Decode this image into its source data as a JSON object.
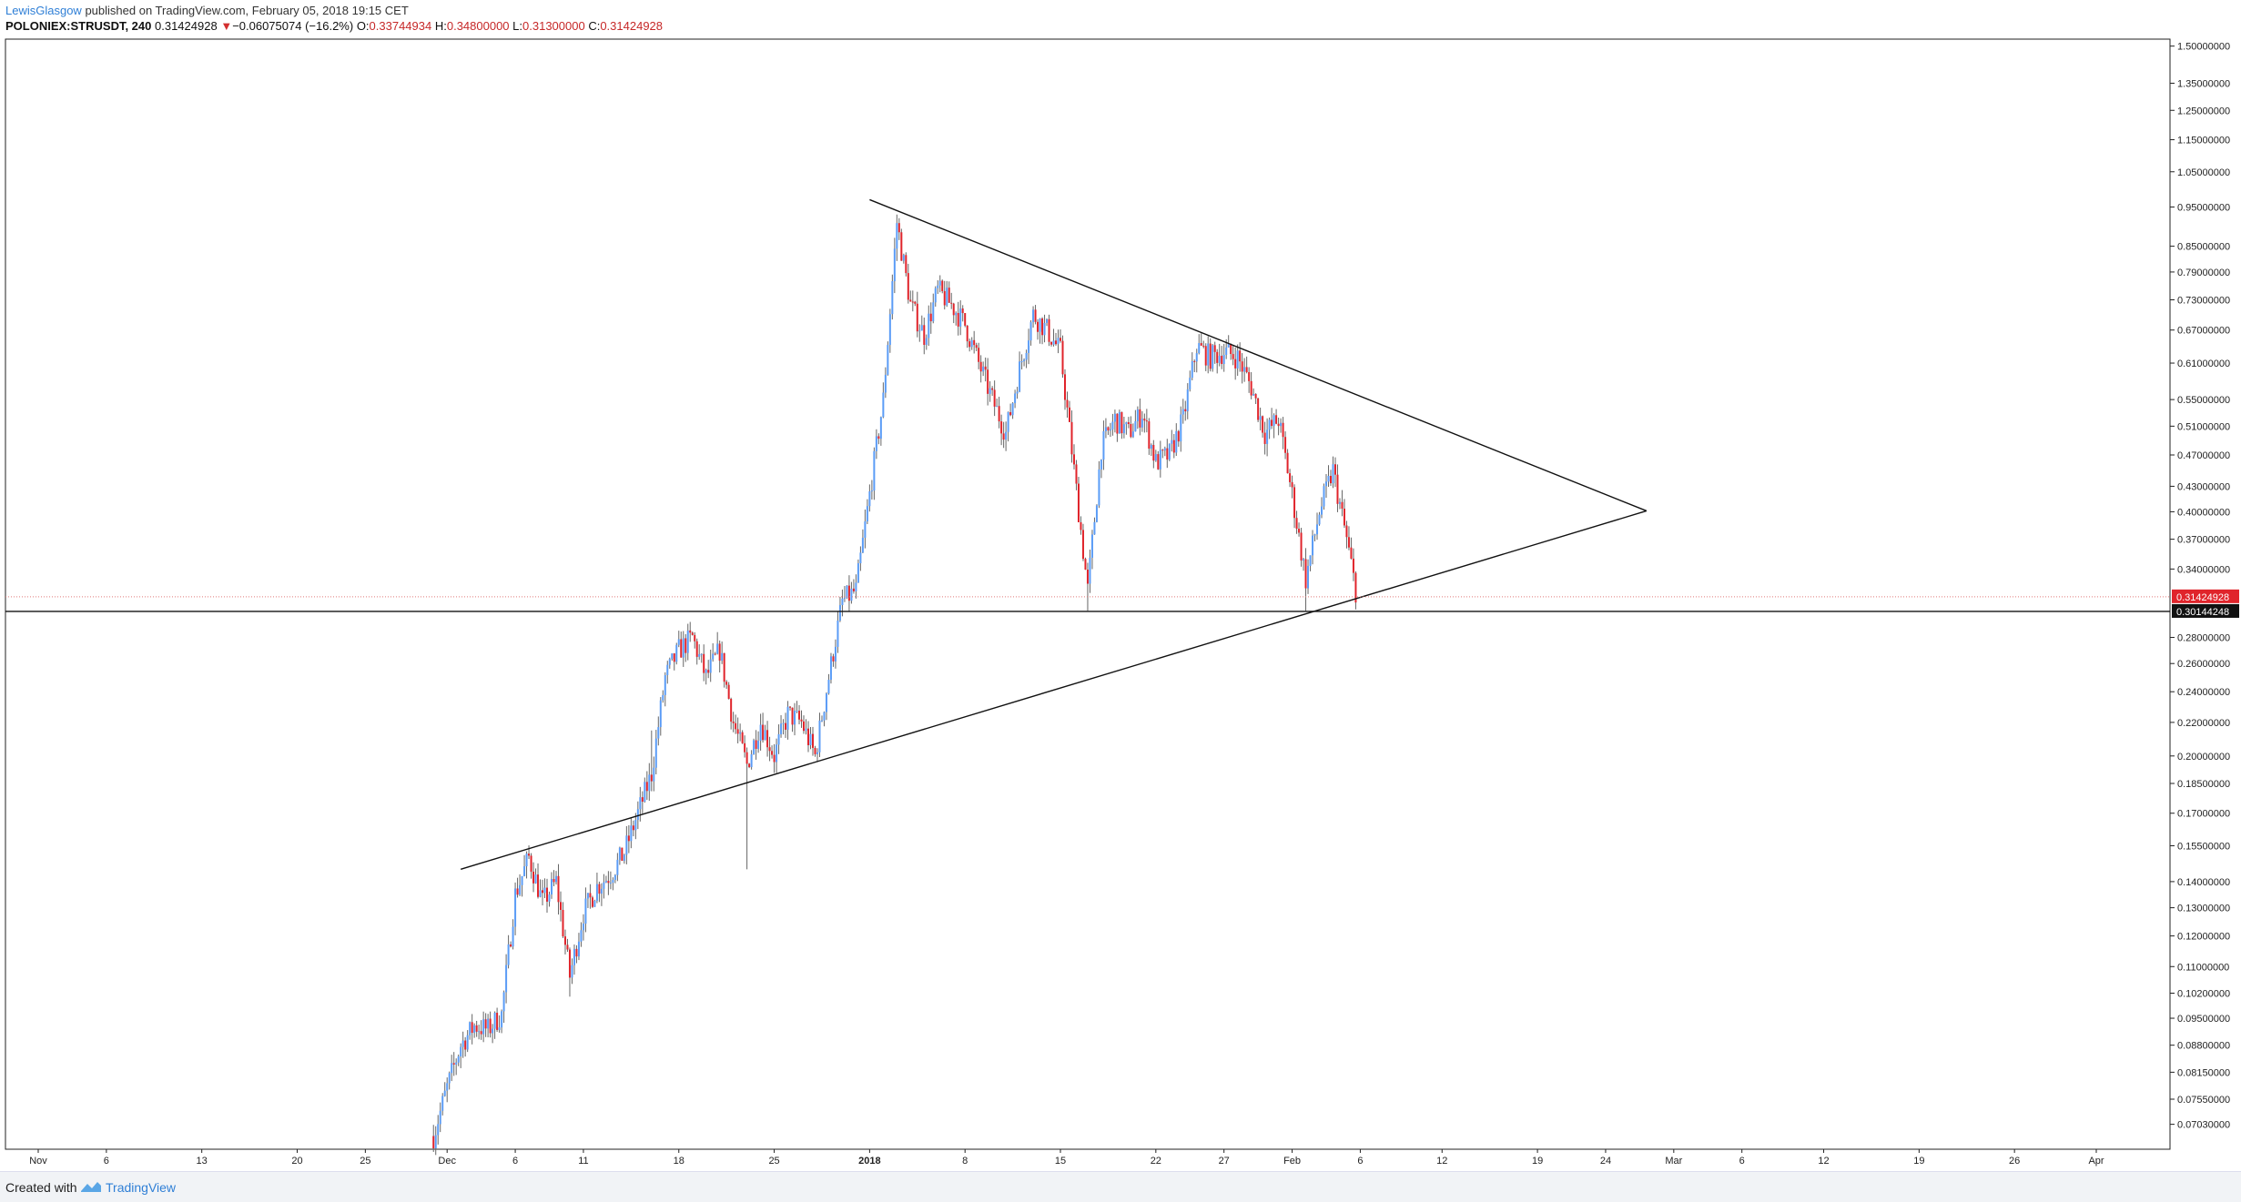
{
  "header": {
    "author": "LewisGlasgow",
    "published_text": "published on TradingView.com, February 05, 2018 19:15 CET",
    "symbol": "POLONIEX:STRUSDT, 240",
    "last": "0.31424928",
    "change_arrow": "▼",
    "change": "−0.06075074 (−16.2%)",
    "open_label": "O:",
    "open": "0.33744934",
    "high_label": "H:",
    "high": "0.34800000",
    "low_label": "L:",
    "low": "0.31300000",
    "close_label": "C:",
    "close": "0.31424928"
  },
  "footer": {
    "created_with": "Created with",
    "brand": "TradingView"
  },
  "colors": {
    "up": "#5b9cf6",
    "down": "#e0242b",
    "wick": "#666666",
    "current_price_bg": "#e0242b",
    "support_label_bg": "#111111"
  },
  "chart_data": {
    "type": "candlestick",
    "scale": "log",
    "ylim": [
      0.0655,
      1.53
    ],
    "y_ticks": [
      "1.50000000",
      "1.35000000",
      "1.25000000",
      "1.15000000",
      "1.05000000",
      "0.95000000",
      "0.85000000",
      "0.79000000",
      "0.73000000",
      "0.67000000",
      "0.61000000",
      "0.55000000",
      "0.51000000",
      "0.47000000",
      "0.43000000",
      "0.40000000",
      "0.37000000",
      "0.34000000",
      "0.28000000",
      "0.26000000",
      "0.24000000",
      "0.22000000",
      "0.20000000",
      "0.18500000",
      "0.17000000",
      "0.15500000",
      "0.14000000",
      "0.13000000",
      "0.12000000",
      "0.11000000",
      "0.10200000",
      "0.09500000",
      "0.08800000",
      "0.08150000",
      "0.07550000",
      "0.07030000"
    ],
    "x_ticks": [
      {
        "label": "Nov",
        "date": "2017-11-01"
      },
      {
        "label": "6",
        "date": "2017-11-06"
      },
      {
        "label": "13",
        "date": "2017-11-13"
      },
      {
        "label": "20",
        "date": "2017-11-20"
      },
      {
        "label": "25",
        "date": "2017-11-25"
      },
      {
        "label": "Dec",
        "date": "2017-12-01"
      },
      {
        "label": "6",
        "date": "2017-12-06"
      },
      {
        "label": "11",
        "date": "2017-12-11"
      },
      {
        "label": "18",
        "date": "2017-12-18"
      },
      {
        "label": "25",
        "date": "2017-12-25"
      },
      {
        "label": "2018",
        "date": "2018-01-01",
        "bold": true
      },
      {
        "label": "8",
        "date": "2018-01-08"
      },
      {
        "label": "15",
        "date": "2018-01-15"
      },
      {
        "label": "22",
        "date": "2018-01-22"
      },
      {
        "label": "27",
        "date": "2018-01-27"
      },
      {
        "label": "Feb",
        "date": "2018-02-01"
      },
      {
        "label": "6",
        "date": "2018-02-06"
      },
      {
        "label": "12",
        "date": "2018-02-12"
      },
      {
        "label": "19",
        "date": "2018-02-19"
      },
      {
        "label": "24",
        "date": "2018-02-24"
      },
      {
        "label": "Mar",
        "date": "2018-03-01"
      },
      {
        "label": "6",
        "date": "2018-03-06"
      },
      {
        "label": "12",
        "date": "2018-03-12"
      },
      {
        "label": "19",
        "date": "2018-03-19"
      },
      {
        "label": "26",
        "date": "2018-03-26"
      },
      {
        "label": "Apr",
        "date": "2018-04-01"
      }
    ],
    "current_price": {
      "value": 0.31424928,
      "label": "0.31424928"
    },
    "support_level": {
      "value": 0.30144248,
      "label": "0.30144248"
    },
    "trendlines": [
      {
        "name": "upper-trendline",
        "from": {
          "date": "2018-01-01",
          "price": 0.97
        },
        "to": {
          "date": "2018-02-27",
          "price": 0.401
        }
      },
      {
        "name": "lower-trendline",
        "from": {
          "date": "2017-12-02",
          "price": 0.145
        },
        "to": {
          "date": "2018-02-27",
          "price": 0.401
        }
      }
    ],
    "price_path": [
      {
        "date": "2017-11-30",
        "price": 0.068
      },
      {
        "date": "2017-12-01",
        "price": 0.078
      },
      {
        "date": "2017-12-02",
        "price": 0.088
      },
      {
        "date": "2017-12-03",
        "price": 0.093
      },
      {
        "date": "2017-12-04",
        "price": 0.092
      },
      {
        "date": "2017-12-05",
        "price": 0.096
      },
      {
        "date": "2017-12-06",
        "price": 0.135
      },
      {
        "date": "2017-12-07",
        "price": 0.15
      },
      {
        "date": "2017-12-08",
        "price": 0.132
      },
      {
        "date": "2017-12-09",
        "price": 0.14
      },
      {
        "date": "2017-12-10",
        "price": 0.107
      },
      {
        "date": "2017-12-11",
        "price": 0.128
      },
      {
        "date": "2017-12-12",
        "price": 0.138
      },
      {
        "date": "2017-12-13",
        "price": 0.143
      },
      {
        "date": "2017-12-14",
        "price": 0.152
      },
      {
        "date": "2017-12-15",
        "price": 0.17
      },
      {
        "date": "2017-12-16",
        "price": 0.19
      },
      {
        "date": "2017-12-17",
        "price": 0.25
      },
      {
        "date": "2017-12-18",
        "price": 0.27
      },
      {
        "date": "2017-12-19",
        "price": 0.28
      },
      {
        "date": "2017-12-20",
        "price": 0.25
      },
      {
        "date": "2017-12-21",
        "price": 0.27
      },
      {
        "date": "2017-12-22",
        "price": 0.22
      },
      {
        "date": "2017-12-23",
        "price": 0.195
      },
      {
        "date": "2017-12-24",
        "price": 0.22
      },
      {
        "date": "2017-12-25",
        "price": 0.2
      },
      {
        "date": "2017-12-26",
        "price": 0.225
      },
      {
        "date": "2017-12-27",
        "price": 0.22
      },
      {
        "date": "2017-12-28",
        "price": 0.2
      },
      {
        "date": "2017-12-29",
        "price": 0.25
      },
      {
        "date": "2017-12-30",
        "price": 0.31
      },
      {
        "date": "2017-12-31",
        "price": 0.32
      },
      {
        "date": "2018-01-01",
        "price": 0.42
      },
      {
        "date": "2018-01-02",
        "price": 0.55
      },
      {
        "date": "2018-01-03",
        "price": 0.91
      },
      {
        "date": "2018-01-04",
        "price": 0.72
      },
      {
        "date": "2018-01-05",
        "price": 0.66
      },
      {
        "date": "2018-01-06",
        "price": 0.75
      },
      {
        "date": "2018-01-07",
        "price": 0.72
      },
      {
        "date": "2018-01-08",
        "price": 0.68
      },
      {
        "date": "2018-01-09",
        "price": 0.61
      },
      {
        "date": "2018-01-10",
        "price": 0.55
      },
      {
        "date": "2018-01-11",
        "price": 0.5
      },
      {
        "date": "2018-01-12",
        "price": 0.6
      },
      {
        "date": "2018-01-13",
        "price": 0.7
      },
      {
        "date": "2018-01-14",
        "price": 0.67
      },
      {
        "date": "2018-01-15",
        "price": 0.63
      },
      {
        "date": "2018-01-16",
        "price": 0.45
      },
      {
        "date": "2018-01-17",
        "price": 0.32
      },
      {
        "date": "2018-01-18",
        "price": 0.48
      },
      {
        "date": "2018-01-19",
        "price": 0.52
      },
      {
        "date": "2018-01-20",
        "price": 0.5
      },
      {
        "date": "2018-01-21",
        "price": 0.53
      },
      {
        "date": "2018-01-22",
        "price": 0.46
      },
      {
        "date": "2018-01-23",
        "price": 0.47
      },
      {
        "date": "2018-01-24",
        "price": 0.52
      },
      {
        "date": "2018-01-25",
        "price": 0.64
      },
      {
        "date": "2018-01-26",
        "price": 0.62
      },
      {
        "date": "2018-01-27",
        "price": 0.63
      },
      {
        "date": "2018-01-28",
        "price": 0.62
      },
      {
        "date": "2018-01-29",
        "price": 0.57
      },
      {
        "date": "2018-01-30",
        "price": 0.5
      },
      {
        "date": "2018-01-31",
        "price": 0.52
      },
      {
        "date": "2018-02-01",
        "price": 0.42
      },
      {
        "date": "2018-02-02",
        "price": 0.33
      },
      {
        "date": "2018-02-03",
        "price": 0.4
      },
      {
        "date": "2018-02-04",
        "price": 0.45
      },
      {
        "date": "2018-02-05",
        "price": 0.37
      },
      {
        "date": "2018-02-05T18:00",
        "price": 0.314
      }
    ]
  }
}
